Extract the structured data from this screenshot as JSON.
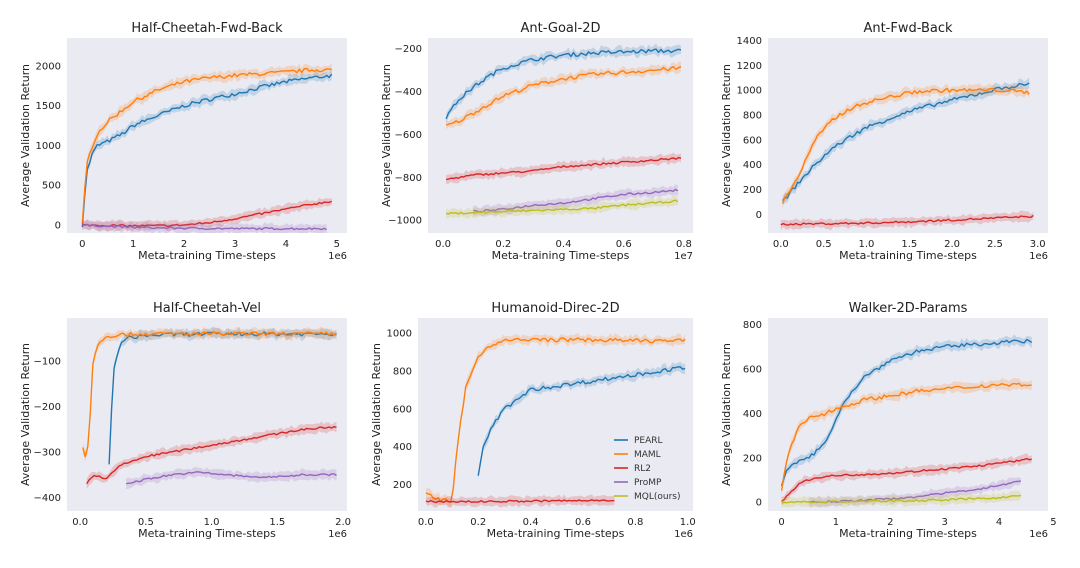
{
  "figure": {
    "legend": {
      "items": [
        {
          "label": "PEARL",
          "color": "#1f77b4"
        },
        {
          "label": "MAML",
          "color": "#ff7f0e"
        },
        {
          "label": "RL2",
          "color": "#d62728"
        },
        {
          "label": "ProMP",
          "color": "#9467bd"
        },
        {
          "label": "MQL(ours)",
          "color": "#bcbd22"
        }
      ]
    }
  },
  "chart_data": [
    {
      "type": "line",
      "title": "Half-Cheetah-Fwd-Back",
      "xlabel": "Meta-training Time-steps",
      "ylabel": "Average Validation Return",
      "x_exponent_label": "1e6",
      "xlim": [
        -0.3,
        5.2
      ],
      "ylim": [
        -100,
        2350
      ],
      "xticks": [
        0,
        1,
        2,
        3,
        4,
        5
      ],
      "xtick_labels": [
        "0",
        "1",
        "2",
        "3",
        "4",
        "5"
      ],
      "yticks": [
        0,
        500,
        1000,
        1500,
        2000
      ],
      "ytick_labels": [
        "0",
        "500",
        "1000",
        "1500",
        "2000"
      ],
      "series": [
        {
          "name": "PEARL",
          "x": [
            0,
            0.05,
            0.1,
            0.2,
            0.3,
            0.5,
            0.8,
            1.0,
            1.5,
            2.0,
            2.5,
            3.0,
            3.5,
            4.0,
            4.5,
            4.9
          ],
          "y": [
            0,
            400,
            700,
            900,
            1000,
            1050,
            1150,
            1250,
            1380,
            1500,
            1580,
            1650,
            1730,
            1800,
            1850,
            1880
          ]
        },
        {
          "name": "MAML",
          "x": [
            0,
            0.05,
            0.1,
            0.2,
            0.3,
            0.5,
            0.8,
            1.0,
            1.5,
            2.0,
            2.5,
            3.0,
            3.5,
            4.0,
            4.5,
            4.9
          ],
          "y": [
            0,
            450,
            800,
            1000,
            1150,
            1300,
            1450,
            1550,
            1700,
            1800,
            1850,
            1880,
            1900,
            1920,
            1950,
            1950
          ]
        },
        {
          "name": "RL2",
          "x": [
            0,
            0.5,
            1.0,
            1.5,
            2.0,
            2.5,
            3.0,
            3.5,
            4.0,
            4.5,
            4.9
          ],
          "y": [
            0,
            -5,
            -10,
            -8,
            0,
            30,
            80,
            140,
            200,
            260,
            300
          ]
        },
        {
          "name": "ProMP",
          "x": [
            0,
            1,
            2,
            3,
            4,
            4.8
          ],
          "y": [
            0,
            -30,
            -40,
            -45,
            -45,
            -45
          ]
        }
      ]
    },
    {
      "type": "line",
      "title": "Ant-Goal-2D",
      "xlabel": "Meta-training Time-steps",
      "ylabel": "Average Validation Return",
      "x_exponent_label": "1e7",
      "xlim": [
        -0.05,
        0.83
      ],
      "ylim": [
        -1060,
        -150
      ],
      "xticks": [
        0,
        0.2,
        0.4,
        0.6,
        0.8
      ],
      "xtick_labels": [
        "0.0",
        "0.2",
        "0.4",
        "0.6",
        "0.8"
      ],
      "yticks": [
        -1000,
        -800,
        -600,
        -400,
        -200
      ],
      "ytick_labels": [
        "−1000",
        "−800",
        "−600",
        "−400",
        "−200"
      ],
      "series": [
        {
          "name": "PEARL",
          "x": [
            0.01,
            0.03,
            0.05,
            0.1,
            0.15,
            0.2,
            0.3,
            0.4,
            0.5,
            0.6,
            0.7,
            0.79
          ],
          "y": [
            -520,
            -480,
            -440,
            -380,
            -330,
            -290,
            -250,
            -230,
            -220,
            -215,
            -210,
            -210
          ]
        },
        {
          "name": "MAML",
          "x": [
            0.01,
            0.03,
            0.05,
            0.1,
            0.15,
            0.2,
            0.3,
            0.4,
            0.5,
            0.6,
            0.7,
            0.79
          ],
          "y": [
            -560,
            -550,
            -540,
            -500,
            -460,
            -420,
            -370,
            -340,
            -320,
            -310,
            -300,
            -290
          ]
        },
        {
          "name": "RL2",
          "x": [
            0.01,
            0.1,
            0.2,
            0.3,
            0.4,
            0.5,
            0.6,
            0.7,
            0.79
          ],
          "y": [
            -810,
            -790,
            -780,
            -770,
            -750,
            -740,
            -730,
            -720,
            -710
          ]
        },
        {
          "name": "ProMP",
          "x": [
            0.1,
            0.2,
            0.3,
            0.4,
            0.5,
            0.6,
            0.7,
            0.78
          ],
          "y": [
            -960,
            -950,
            -930,
            -920,
            -900,
            -880,
            -870,
            -860
          ]
        },
        {
          "name": "MQL(ours)",
          "x": [
            0.01,
            0.1,
            0.2,
            0.3,
            0.4,
            0.5,
            0.6,
            0.7,
            0.78
          ],
          "y": [
            -970,
            -965,
            -960,
            -955,
            -950,
            -945,
            -930,
            -920,
            -910
          ]
        }
      ]
    },
    {
      "type": "line",
      "title": "Ant-Fwd-Back",
      "xlabel": "Meta-training Time-steps",
      "ylabel": "Average Validation Return",
      "x_exponent_label": "1e6",
      "xlim": [
        -0.15,
        3.12
      ],
      "ylim": [
        -150,
        1420
      ],
      "xticks": [
        0,
        0.5,
        1,
        1.5,
        2,
        2.5,
        3
      ],
      "xtick_labels": [
        "0.0",
        "0.5",
        "1.0",
        "1.5",
        "2.0",
        "2.5",
        "3.0"
      ],
      "yticks": [
        0,
        200,
        400,
        600,
        800,
        1000,
        1200,
        1400
      ],
      "ytick_labels": [
        "0",
        "200",
        "400",
        "600",
        "800",
        "1000",
        "1200",
        "1400"
      ],
      "series": [
        {
          "name": "PEARL",
          "x": [
            0.02,
            0.2,
            0.4,
            0.6,
            0.8,
            1.0,
            1.3,
            1.6,
            2.0,
            2.3,
            2.6,
            2.9
          ],
          "y": [
            100,
            250,
            400,
            530,
            620,
            700,
            780,
            850,
            920,
            970,
            1020,
            1050
          ]
        },
        {
          "name": "MAML",
          "x": [
            0.02,
            0.2,
            0.4,
            0.6,
            0.8,
            1.0,
            1.3,
            1.6,
            2.0,
            2.3,
            2.6,
            2.9
          ],
          "y": [
            100,
            300,
            600,
            760,
            850,
            900,
            950,
            990,
            1000,
            1000,
            1000,
            980
          ]
        },
        {
          "name": "RL2",
          "x": [
            0,
            0.5,
            1.0,
            1.5,
            2.0,
            2.5,
            2.95
          ],
          "y": [
            -80,
            -75,
            -70,
            -60,
            -45,
            -30,
            -15
          ]
        }
      ]
    },
    {
      "type": "line",
      "title": "Half-Cheetah-Vel",
      "xlabel": "Meta-training Time-steps",
      "ylabel": "Average Validation Return",
      "x_exponent_label": "1e6",
      "xlim": [
        -0.1,
        2.03
      ],
      "ylim": [
        -430,
        -5
      ],
      "xticks": [
        0,
        0.5,
        1,
        1.5,
        2
      ],
      "xtick_labels": [
        "0.0",
        "0.5",
        "1.0",
        "1.5",
        "2.0"
      ],
      "yticks": [
        -400,
        -300,
        -200,
        -100
      ],
      "ytick_labels": [
        "−400",
        "−300",
        "−200",
        "−100"
      ],
      "series": [
        {
          "name": "PEARL",
          "x": [
            0.22,
            0.24,
            0.26,
            0.3,
            0.35,
            0.45,
            0.6,
            1.0,
            1.5,
            1.95
          ],
          "y": [
            -330,
            -200,
            -110,
            -65,
            -50,
            -45,
            -42,
            -40,
            -40,
            -40
          ]
        },
        {
          "name": "MAML",
          "x": [
            0.02,
            0.05,
            0.08,
            0.1,
            0.15,
            0.2,
            0.3,
            0.5,
            1.0,
            1.5,
            1.95
          ],
          "y": [
            -290,
            -320,
            -200,
            -90,
            -55,
            -45,
            -42,
            -40,
            -40,
            -40,
            -40
          ]
        },
        {
          "name": "RL2",
          "x": [
            0.05,
            0.1,
            0.2,
            0.3,
            0.4,
            0.5,
            0.7,
            0.9,
            1.1,
            1.3,
            1.5,
            1.7,
            1.95
          ],
          "y": [
            -370,
            -350,
            -360,
            -330,
            -320,
            -310,
            -300,
            -290,
            -280,
            -270,
            -260,
            -250,
            -245
          ]
        },
        {
          "name": "ProMP",
          "x": [
            0.35,
            0.5,
            0.7,
            0.9,
            1.1,
            1.3,
            1.5,
            1.7,
            1.95
          ],
          "y": [
            -370,
            -360,
            -350,
            -345,
            -350,
            -355,
            -355,
            -350,
            -350
          ]
        }
      ]
    },
    {
      "type": "line",
      "title": "Humanoid-Direc-2D",
      "xlabel": "Meta-training Time-steps",
      "ylabel": "Average Validation Return",
      "x_exponent_label": "1e6",
      "xlim": [
        -0.03,
        1.02
      ],
      "ylim": [
        60,
        1080
      ],
      "xticks": [
        0,
        0.2,
        0.4,
        0.6,
        0.8,
        1.0
      ],
      "xtick_labels": [
        "0.0",
        "0.2",
        "0.4",
        "0.6",
        "0.8",
        "1.0"
      ],
      "yticks": [
        200,
        400,
        600,
        800,
        1000
      ],
      "ytick_labels": [
        "200",
        "400",
        "600",
        "800",
        "1000"
      ],
      "series": [
        {
          "name": "PEARL",
          "x": [
            0.2,
            0.22,
            0.25,
            0.3,
            0.35,
            0.4,
            0.5,
            0.6,
            0.7,
            0.8,
            0.9,
            0.99
          ],
          "y": [
            250,
            400,
            500,
            600,
            650,
            700,
            720,
            740,
            760,
            780,
            800,
            820
          ]
        },
        {
          "name": "MAML",
          "x": [
            0,
            0.05,
            0.1,
            0.12,
            0.15,
            0.2,
            0.25,
            0.3,
            0.4,
            0.6,
            0.8,
            0.99
          ],
          "y": [
            150,
            120,
            110,
            400,
            700,
            880,
            940,
            960,
            965,
            965,
            960,
            960
          ]
        },
        {
          "name": "RL2",
          "x": [
            0,
            0.2,
            0.4,
            0.6,
            0.72
          ],
          "y": [
            110,
            110,
            112,
            115,
            118
          ]
        }
      ]
    },
    {
      "type": "line",
      "title": "Walker-2D-Params",
      "xlabel": "Meta-training Time-steps",
      "ylabel": "Average Validation Return",
      "x_exponent_label": "1e6",
      "xlim": [
        -0.25,
        4.9
      ],
      "ylim": [
        -40,
        830
      ],
      "xticks": [
        0,
        1,
        2,
        3,
        4,
        5
      ],
      "xtick_labels": [
        "0",
        "1",
        "2",
        "3",
        "4",
        "5"
      ],
      "yticks": [
        0,
        200,
        400,
        600,
        800
      ],
      "ytick_labels": [
        "0",
        "200",
        "400",
        "600",
        "800"
      ],
      "series": [
        {
          "name": "PEARL",
          "x": [
            0,
            0.1,
            0.3,
            0.5,
            0.8,
            1.0,
            1.2,
            1.5,
            2.0,
            2.5,
            3.0,
            3.5,
            4.0,
            4.6
          ],
          "y": [
            80,
            150,
            180,
            200,
            260,
            380,
            470,
            560,
            640,
            680,
            700,
            710,
            720,
            725
          ]
        },
        {
          "name": "MAML",
          "x": [
            0,
            0.1,
            0.3,
            0.5,
            0.8,
            1.0,
            1.5,
            2.0,
            2.5,
            3.0,
            3.5,
            4.0,
            4.6
          ],
          "y": [
            50,
            200,
            330,
            380,
            400,
            420,
            460,
            480,
            500,
            510,
            520,
            530,
            530
          ]
        },
        {
          "name": "RL2",
          "x": [
            0,
            0.3,
            0.6,
            1.0,
            1.5,
            2.0,
            2.5,
            3.0,
            3.5,
            4.0,
            4.6
          ],
          "y": [
            0,
            80,
            110,
            120,
            125,
            130,
            140,
            150,
            160,
            175,
            195
          ]
        },
        {
          "name": "ProMP",
          "x": [
            0.5,
            1.0,
            1.5,
            2.0,
            2.5,
            3.0,
            3.5,
            4.0,
            4.4
          ],
          "y": [
            0,
            3,
            8,
            15,
            25,
            40,
            55,
            75,
            95
          ]
        },
        {
          "name": "MQL(ours)",
          "x": [
            0,
            1.0,
            2.0,
            3.0,
            4.0,
            4.4
          ],
          "y": [
            0,
            2,
            5,
            10,
            20,
            30
          ]
        }
      ]
    }
  ]
}
